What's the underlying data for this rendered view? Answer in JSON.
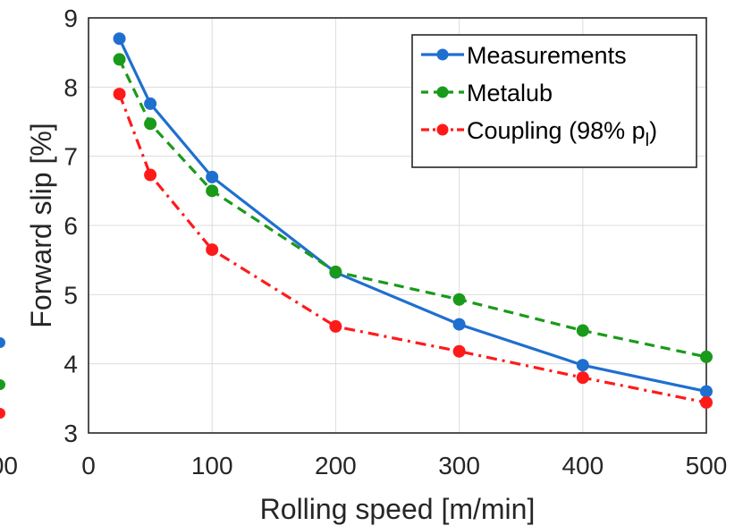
{
  "chart_data": {
    "type": "line",
    "xlabel": "Rolling speed [m/min]",
    "ylabel": "Forward slip [%]",
    "xlim": [
      0,
      500
    ],
    "ylim": [
      3,
      9
    ],
    "xticks": [
      0,
      100,
      200,
      300,
      400,
      500
    ],
    "yticks": [
      3,
      4,
      5,
      6,
      7,
      8,
      9
    ],
    "grid": true,
    "legend_position": "top-right",
    "series": [
      {
        "name": "Measurements",
        "color": "#1f6fcf",
        "line_style": "solid",
        "marker": "circle",
        "x": [
          25,
          50,
          100,
          200,
          300,
          400,
          500
        ],
        "y": [
          8.7,
          7.76,
          6.7,
          5.32,
          4.57,
          3.98,
          3.6
        ]
      },
      {
        "name": "Metalub",
        "color": "#1a9a1a",
        "line_style": "dashed",
        "marker": "circle",
        "x": [
          25,
          50,
          100,
          200,
          300,
          400,
          500
        ],
        "y": [
          8.4,
          7.47,
          6.5,
          5.33,
          4.93,
          4.48,
          4.1
        ]
      },
      {
        "name": "Coupling (98% p",
        "name_subscript": "l",
        "name_suffix": ")",
        "color": "#ff1a1a",
        "line_style": "dash-dot",
        "marker": "circle",
        "x": [
          25,
          50,
          100,
          200,
          300,
          400,
          500
        ],
        "y": [
          7.9,
          6.73,
          5.65,
          4.54,
          4.18,
          3.8,
          3.44
        ]
      }
    ]
  },
  "left_fragment": {
    "tick_text": "00",
    "marker_colors": [
      "#1f6fcf",
      "#1a9a1a",
      "#ff1a1a"
    ]
  }
}
